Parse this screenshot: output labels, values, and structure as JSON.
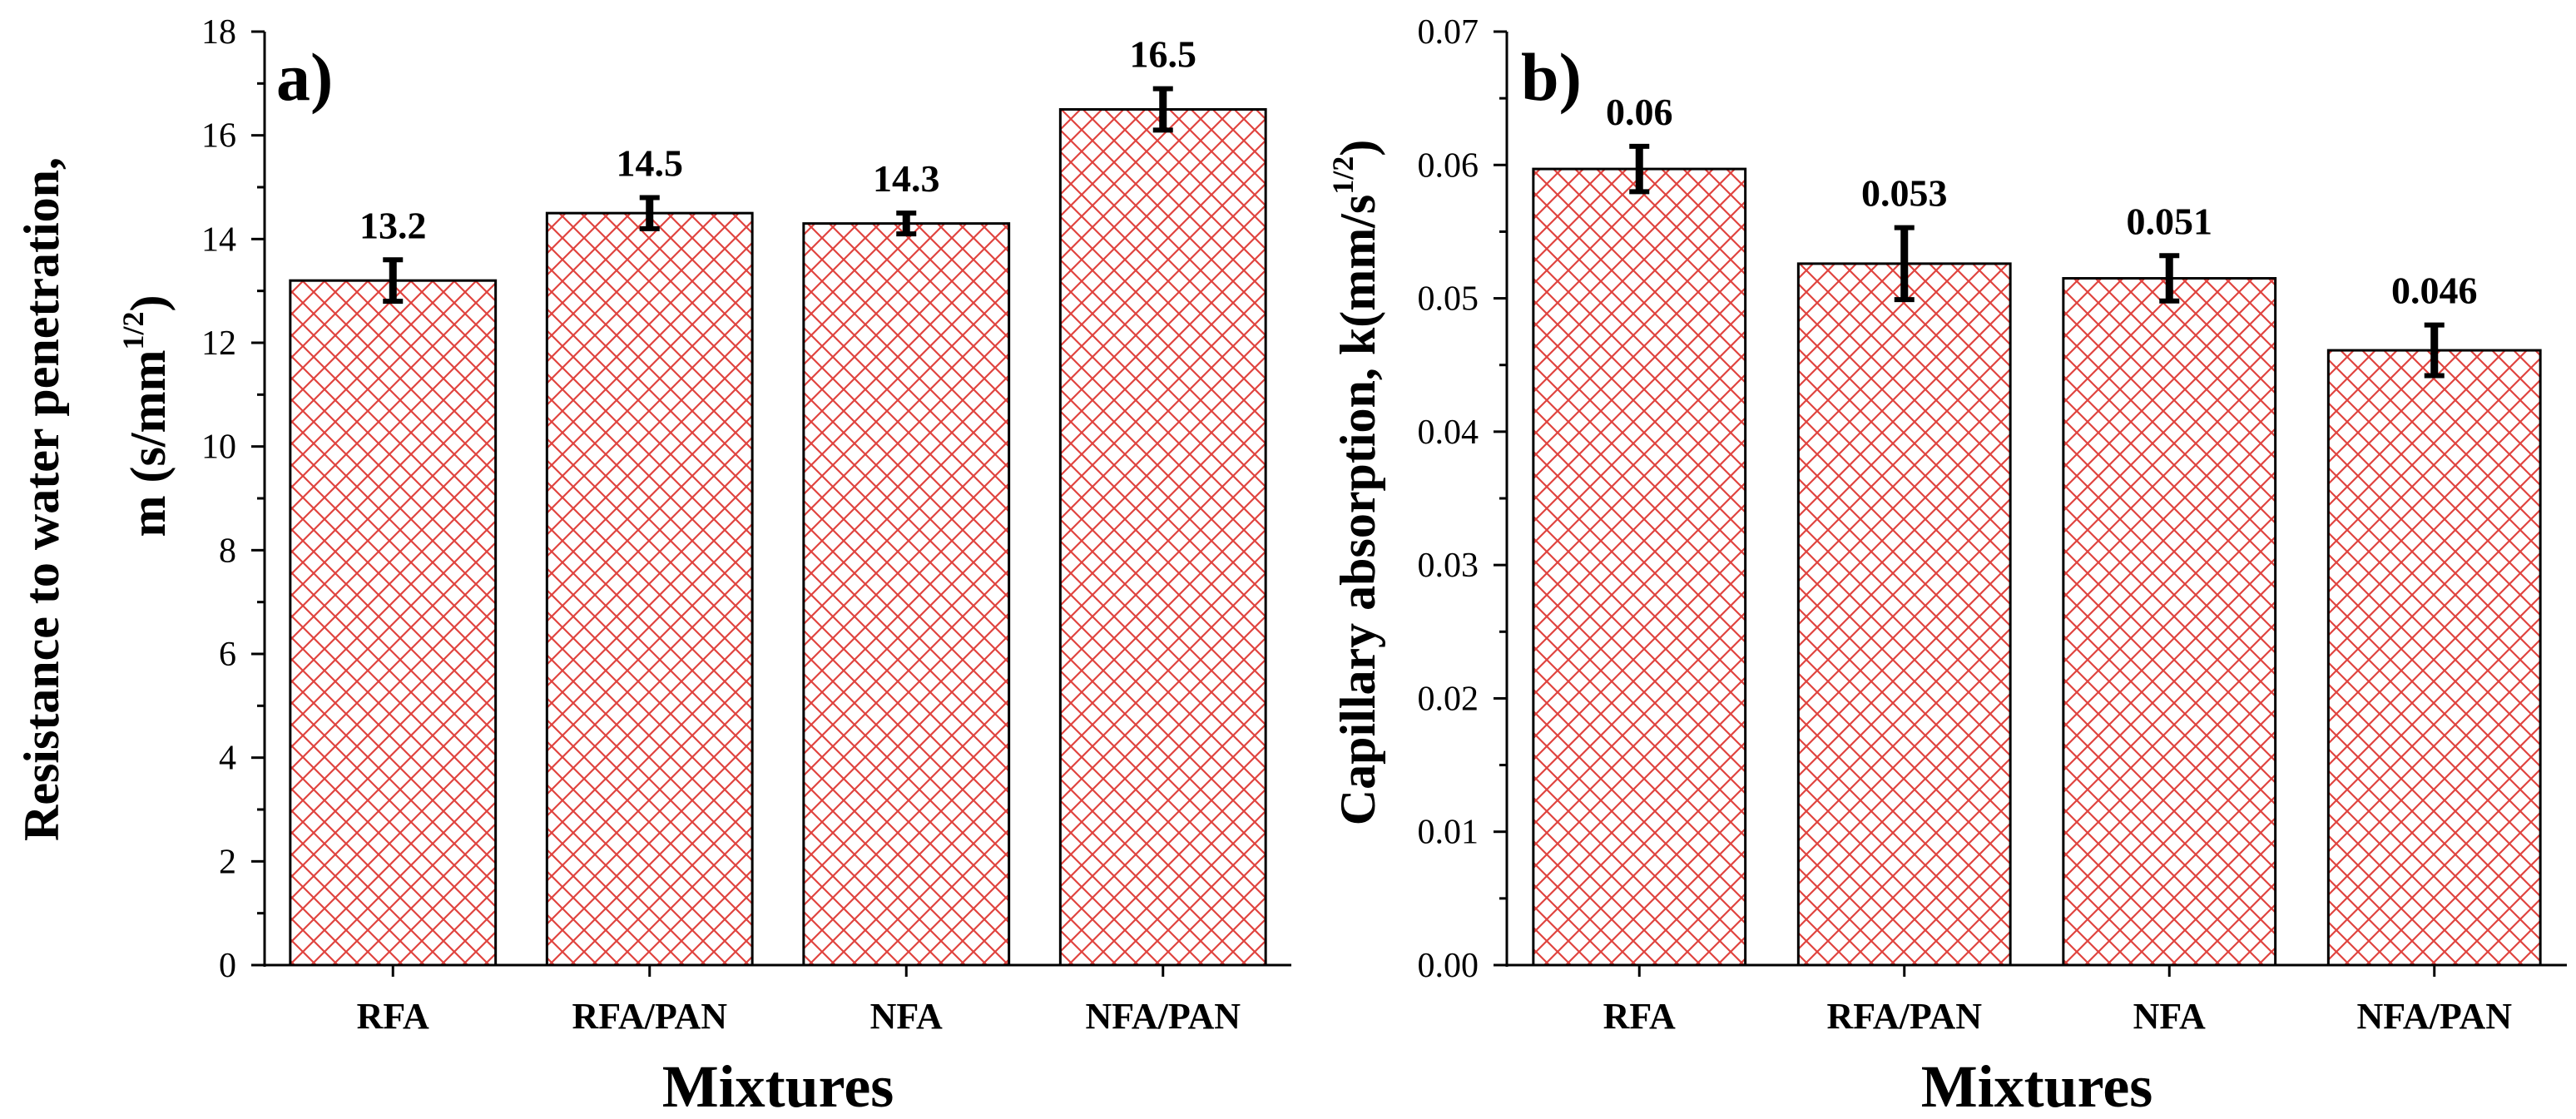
{
  "colors": {
    "bar_pattern": "#e0443f",
    "bar_fill": "#ffffff",
    "axis": "#000000",
    "error_bar": "#000000"
  },
  "chart_data": [
    {
      "panel_label": "a)",
      "type": "bar",
      "categories": [
        "RFA",
        "RFA/PAN",
        "NFA",
        "NFA/PAN"
      ],
      "values": [
        13.2,
        14.5,
        14.3,
        16.5
      ],
      "errors": [
        0.4,
        0.3,
        0.2,
        0.4
      ],
      "data_labels": [
        "13.2",
        "14.5",
        "14.3",
        "16.5"
      ],
      "ylim": [
        0,
        18
      ],
      "yticks": [
        0,
        2,
        4,
        6,
        8,
        10,
        12,
        14,
        16,
        18
      ],
      "ytick_labels": [
        "0",
        "2",
        "4",
        "6",
        "8",
        "10",
        "12",
        "14",
        "16",
        "18"
      ],
      "ylabel_line1": "Resistance to water penetration,",
      "ylabel_line2": "m (s/mm",
      "ylabel_sup": "1/2",
      "ylabel_close": ")",
      "xlabel": "Mixtures",
      "grid": false,
      "legend": "none"
    },
    {
      "panel_label": "b)",
      "type": "bar",
      "categories": [
        "RFA",
        "RFA/PAN",
        "NFA",
        "NFA/PAN"
      ],
      "values": [
        0.0597,
        0.0526,
        0.0515,
        0.0461
      ],
      "errors": [
        0.0017,
        0.0027,
        0.0017,
        0.0019
      ],
      "data_labels": [
        "0.06",
        "0.053",
        "0.051",
        "0.046"
      ],
      "ylim": [
        0,
        0.07
      ],
      "yticks": [
        0,
        0.01,
        0.02,
        0.03,
        0.04,
        0.05,
        0.06,
        0.07
      ],
      "ytick_labels": [
        "0.00",
        "0.01",
        "0.02",
        "0.03",
        "0.04",
        "0.05",
        "0.06",
        "0.07"
      ],
      "ylabel_line1": "Capillary absorption, k(mm/s",
      "ylabel_sup": "1/2",
      "ylabel_close": ")",
      "xlabel": "Mixtures",
      "grid": false,
      "legend": "none"
    }
  ]
}
